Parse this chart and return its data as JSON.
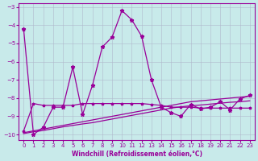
{
  "x": [
    0,
    1,
    2,
    3,
    4,
    5,
    6,
    7,
    8,
    9,
    10,
    11,
    12,
    13,
    14,
    15,
    16,
    17,
    18,
    19,
    20,
    21,
    22,
    23
  ],
  "line_main": [
    -4.2,
    -10.0,
    -9.6,
    -8.5,
    -8.5,
    -6.3,
    -8.9,
    -7.3,
    -5.2,
    -4.65,
    -3.2,
    -3.7,
    -4.6,
    -7.0,
    -8.5,
    -8.8,
    -9.0,
    -8.35,
    -8.6,
    -8.5,
    -8.2,
    -8.65,
    -8.05,
    -7.85
  ],
  "line_flat": [
    -9.8,
    -8.3,
    -8.4,
    -8.4,
    -8.4,
    -8.4,
    -8.3,
    -8.3,
    -8.3,
    -8.3,
    -8.3,
    -8.3,
    -8.3,
    -8.35,
    -8.4,
    -8.5,
    -8.5,
    -8.5,
    -8.55,
    -8.55,
    -8.55,
    -8.55,
    -8.55,
    -8.55
  ],
  "line_diag1": [
    -9.9,
    -9.8,
    -9.7,
    -9.6,
    -9.5,
    -9.4,
    -9.3,
    -9.2,
    -9.1,
    -9.0,
    -8.9,
    -8.8,
    -8.7,
    -8.6,
    -8.5,
    -8.4,
    -8.3,
    -8.2,
    -8.15,
    -8.1,
    -8.05,
    -8.0,
    -7.95,
    -7.9
  ],
  "line_diag2": [
    -9.95,
    -9.85,
    -9.78,
    -9.68,
    -9.58,
    -9.5,
    -9.42,
    -9.35,
    -9.25,
    -9.15,
    -9.05,
    -8.95,
    -8.85,
    -8.75,
    -8.65,
    -8.55,
    -8.48,
    -8.42,
    -8.38,
    -8.33,
    -8.28,
    -8.23,
    -8.2,
    -8.15
  ],
  "xlabel": "Windchill (Refroidissement éolien,°C)",
  "ylim": [
    -10.3,
    -2.8
  ],
  "xlim": [
    -0.5,
    23.5
  ],
  "yticks": [
    -10,
    -9,
    -8,
    -7,
    -6,
    -5,
    -4,
    -3
  ],
  "xticks": [
    0,
    1,
    2,
    3,
    4,
    5,
    6,
    7,
    8,
    9,
    10,
    11,
    12,
    13,
    14,
    15,
    16,
    17,
    18,
    19,
    20,
    21,
    22,
    23
  ],
  "line_color": "#990099",
  "bg_color": "#c8eaea",
  "grid_color": "#b0b8cc"
}
